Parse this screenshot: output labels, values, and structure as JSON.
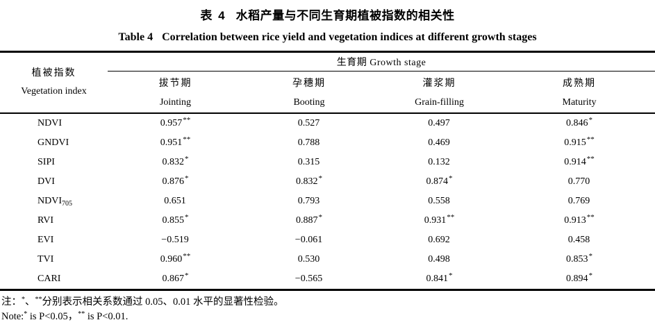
{
  "page": {
    "title_zh": {
      "label": "表 4",
      "text": "水稻产量与不同生育期植被指数的相关性"
    },
    "title_en": {
      "label": "Table 4",
      "text": "Correlation between rice yield and vegetation indices at different growth stages"
    }
  },
  "table": {
    "header": {
      "veg_zh": "植被指数",
      "veg_en": "Vegetation index",
      "group": "生育期 Growth stage",
      "stages": [
        {
          "zh": "拔节期",
          "en": "Jointing"
        },
        {
          "zh": "孕穗期",
          "en": "Booting"
        },
        {
          "zh": "灌浆期",
          "en": "Grain-filling"
        },
        {
          "zh": "成熟期",
          "en": "Maturity"
        }
      ]
    },
    "rows": [
      {
        "name": "NDVI",
        "sub": "",
        "cells": [
          {
            "v": "0.957",
            "s": "**"
          },
          {
            "v": "0.527",
            "s": ""
          },
          {
            "v": "0.497",
            "s": ""
          },
          {
            "v": "0.846",
            "s": "*"
          }
        ]
      },
      {
        "name": "GNDVI",
        "sub": "",
        "cells": [
          {
            "v": "0.951",
            "s": "**"
          },
          {
            "v": "0.788",
            "s": ""
          },
          {
            "v": "0.469",
            "s": ""
          },
          {
            "v": "0.915",
            "s": "**"
          }
        ]
      },
      {
        "name": "SIPI",
        "sub": "",
        "cells": [
          {
            "v": "0.832",
            "s": "*"
          },
          {
            "v": "0.315",
            "s": ""
          },
          {
            "v": "0.132",
            "s": ""
          },
          {
            "v": "0.914",
            "s": "**"
          }
        ]
      },
      {
        "name": "DVI",
        "sub": "",
        "cells": [
          {
            "v": "0.876",
            "s": "*"
          },
          {
            "v": "0.832",
            "s": "*"
          },
          {
            "v": "0.874",
            "s": "*"
          },
          {
            "v": "0.770",
            "s": ""
          }
        ]
      },
      {
        "name": "NDVI",
        "sub": "705",
        "cells": [
          {
            "v": "0.651",
            "s": ""
          },
          {
            "v": "0.793",
            "s": ""
          },
          {
            "v": "0.558",
            "s": ""
          },
          {
            "v": "0.769",
            "s": ""
          }
        ]
      },
      {
        "name": "RVI",
        "sub": "",
        "cells": [
          {
            "v": "0.855",
            "s": "*"
          },
          {
            "v": "0.887",
            "s": "*"
          },
          {
            "v": "0.931",
            "s": "**"
          },
          {
            "v": "0.913",
            "s": "**"
          }
        ]
      },
      {
        "name": "EVI",
        "sub": "",
        "cells": [
          {
            "v": "−0.519",
            "s": ""
          },
          {
            "v": "−0.061",
            "s": ""
          },
          {
            "v": "0.692",
            "s": ""
          },
          {
            "v": "0.458",
            "s": ""
          }
        ]
      },
      {
        "name": "TVI",
        "sub": "",
        "cells": [
          {
            "v": "0.960",
            "s": "**"
          },
          {
            "v": "0.530",
            "s": ""
          },
          {
            "v": "0.498",
            "s": ""
          },
          {
            "v": "0.853",
            "s": "*"
          }
        ]
      },
      {
        "name": "CARI",
        "sub": "",
        "cells": [
          {
            "v": "0.867",
            "s": "*"
          },
          {
            "v": "−0.565",
            "s": ""
          },
          {
            "v": "0.841",
            "s": "*"
          },
          {
            "v": "0.894",
            "s": "*"
          }
        ]
      }
    ]
  },
  "notes": {
    "zh": {
      "prefix": "注：",
      "star1": "*",
      "sep": "、",
      "star2": "**",
      "text": "分别表示相关系数通过 0.05、0.01 水平的显著性检验。"
    },
    "en": {
      "prefix": "Note:",
      "star1": "*",
      "mid": " is P<0.05，",
      "star2": "**",
      "rest": " is P<0.01."
    }
  },
  "colors": {
    "text": "#000000",
    "background": "#ffffff",
    "rule": "#000000"
  }
}
